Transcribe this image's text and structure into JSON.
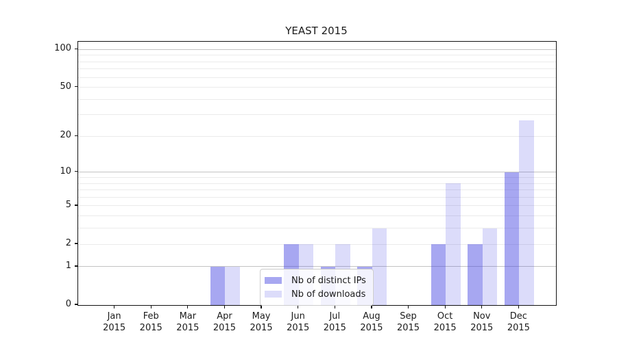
{
  "title": "YEAST 2015",
  "chart_data": {
    "type": "bar",
    "title": "YEAST 2015",
    "categories": [
      "Jan 2015",
      "Feb 2015",
      "Mar 2015",
      "Apr 2015",
      "May 2015",
      "Jun 2015",
      "Jul 2015",
      "Aug 2015",
      "Sep 2015",
      "Oct 2015",
      "Nov 2015",
      "Dec 2015"
    ],
    "series": [
      {
        "name": "Nb of distinct IPs",
        "values": [
          0,
          0,
          0,
          1,
          0,
          2,
          1,
          1,
          0,
          2,
          2,
          10
        ],
        "color": "rgba(60,60,225,0.45)"
      },
      {
        "name": "Nb of downloads",
        "values": [
          0,
          0,
          0,
          1,
          0,
          2,
          2,
          3,
          0,
          8,
          3,
          27
        ],
        "color": "rgba(60,60,225,0.18)"
      }
    ],
    "xlabel": "",
    "ylabel": "",
    "yscale": "log1p",
    "ylim": [
      0,
      115
    ],
    "yticks": [
      0,
      1,
      2,
      5,
      10,
      20,
      50,
      100
    ],
    "grid": {
      "on": true,
      "major": [
        1,
        10,
        100
      ],
      "minor": [
        2,
        3,
        4,
        5,
        6,
        7,
        8,
        9,
        20,
        30,
        40,
        50,
        60,
        70,
        80,
        90
      ]
    },
    "legend": {
      "position": "lower center",
      "items": [
        "Nb of distinct IPs",
        "Nb of downloads"
      ]
    }
  },
  "colors": {
    "bar_ips": "rgba(60,60,225,0.45)",
    "bar_downloads": "rgba(60,60,225,0.18)",
    "grid_major": "#c3c3c3",
    "grid_minor": "#ebebeb",
    "spine": "#111111",
    "text": "#1a1a1a",
    "legend_bg": "rgba(255,255,255,0.85)",
    "legend_border": "#cccccc"
  }
}
